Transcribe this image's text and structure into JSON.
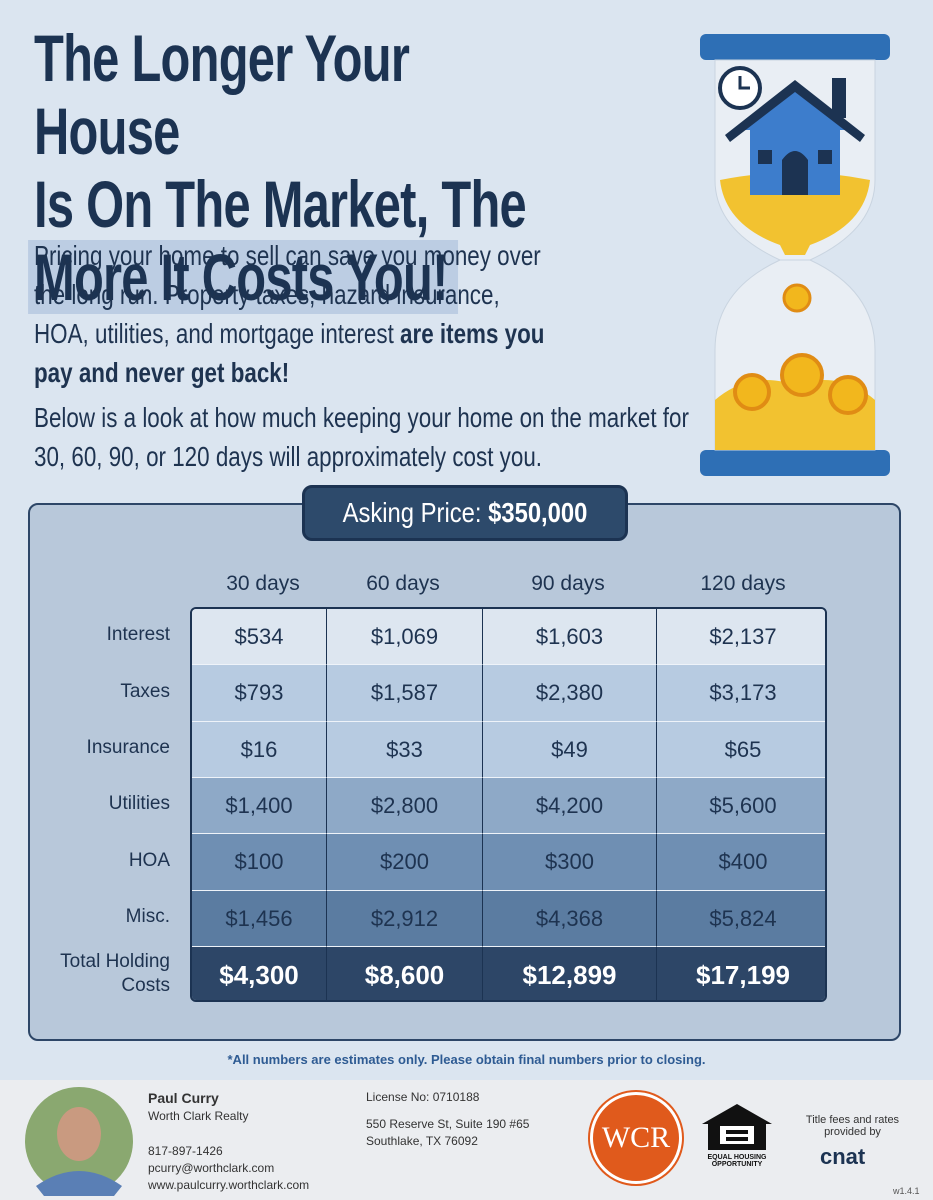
{
  "header": {
    "title_lines": [
      "The Longer Your House",
      "Is On The Market, The",
      "More It Costs You!"
    ]
  },
  "intro": {
    "paragraph1": {
      "text": "Pricing your home to sell can save you money over the long run. Property taxes, hazard insurance, HOA, utilities, and mortgage interest",
      "emphasis": "are items you pay and never get back!"
    },
    "paragraph2": "Below is a look at how much keeping your home on the market for 30, 60, 90, or 120 days will approximately cost you."
  },
  "table": {
    "asking_label": "Asking Price:",
    "asking_value": "$350,000",
    "columns": [
      "30 days",
      "60 days",
      "90 days",
      "120 days"
    ],
    "rows": [
      {
        "label": "Interest",
        "cells": [
          "$534",
          "$1,069",
          "$1,603",
          "$2,137"
        ]
      },
      {
        "label": "Taxes",
        "cells": [
          "$793",
          "$1,587",
          "$2,380",
          "$3,173"
        ]
      },
      {
        "label": "Insurance",
        "cells": [
          "$16",
          "$33",
          "$49",
          "$65"
        ]
      },
      {
        "label": "Utilities",
        "cells": [
          "$1,400",
          "$2,800",
          "$4,200",
          "$5,600"
        ]
      },
      {
        "label": "HOA",
        "cells": [
          "$100",
          "$200",
          "$300",
          "$400"
        ]
      },
      {
        "label": "Misc.",
        "cells": [
          "$1,456",
          "$2,912",
          "$4,368",
          "$5,824"
        ]
      },
      {
        "label": "Total Holding Costs",
        "cells": [
          "$4,300",
          "$8,600",
          "$12,899",
          "$17,199"
        ]
      }
    ]
  },
  "disclaimer": "*All numbers are estimates only. Please obtain final numbers prior to closing.",
  "footer": {
    "agent_name": "Paul Curry",
    "company": "Worth Clark Realty",
    "phone": "817-897-1426",
    "email": "pcurry@worthclark.com",
    "website": "www.paulcurry.worthclark.com",
    "license": "License No: 0710188",
    "address_line1": "550 Reserve St, Suite 190 #65",
    "address_line2": "Southlake, TX 76092",
    "logo": "WCR",
    "equal_housing": "EQUAL HOUSING OPPORTUNITY",
    "title_note": "Title fees and rates provided by",
    "title_brand": "cnat",
    "version": "w1.4.1"
  }
}
